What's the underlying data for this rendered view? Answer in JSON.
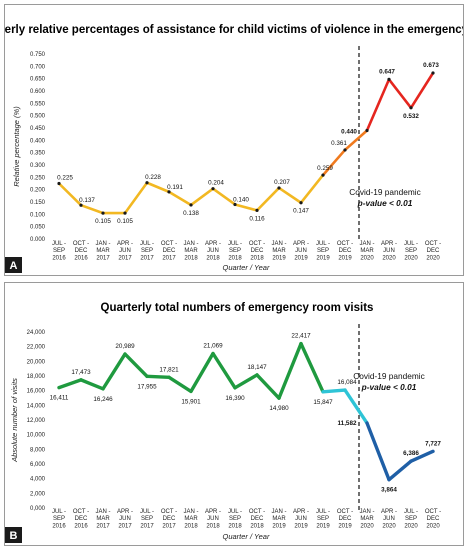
{
  "chart_data": [
    {
      "type": "line",
      "panel_label": "A",
      "title": "Quarterly relative percentages of assistance for child victims of violence in the emergency room",
      "xlabel": "Quarter / Year",
      "ylabel": "Relative percentage (%)",
      "ylim": [
        0,
        0.75
      ],
      "yticks": [
        "0.000",
        "0.050",
        "0.100",
        "0.150",
        "0.200",
        "0.250",
        "0.300",
        "0.350",
        "0.400",
        "0.450",
        "0.500",
        "0.550",
        "0.600",
        "0.650",
        "0.700",
        "0.750"
      ],
      "categories": [
        [
          "JUL -",
          "SEP",
          "2016"
        ],
        [
          "OCT -",
          "DEC",
          "2016"
        ],
        [
          "JAN -",
          "MAR",
          "2017"
        ],
        [
          "APR -",
          "JUN",
          "2017"
        ],
        [
          "JUL -",
          "SEP",
          "2017"
        ],
        [
          "OCT -",
          "DEC",
          "2017"
        ],
        [
          "JAN -",
          "MAR",
          "2018"
        ],
        [
          "APR -",
          "JUN",
          "2018"
        ],
        [
          "JUL -",
          "SEP",
          "2018"
        ],
        [
          "OCT -",
          "DEC",
          "2018"
        ],
        [
          "JAN -",
          "MAR",
          "2019"
        ],
        [
          "APR -",
          "JUN",
          "2019"
        ],
        [
          "JUL -",
          "SEP",
          "2019"
        ],
        [
          "OCT -",
          "DEC",
          "2019"
        ],
        [
          "JAN -",
          "MAR",
          "2020"
        ],
        [
          "APR -",
          "JUN",
          "2020"
        ],
        [
          "JUL -",
          "SEP",
          "2020"
        ],
        [
          "OCT -",
          "DEC",
          "2020"
        ]
      ],
      "values": [
        0.225,
        0.137,
        0.105,
        0.105,
        0.228,
        0.191,
        0.138,
        0.204,
        0.14,
        0.116,
        0.207,
        0.147,
        0.259,
        0.361,
        0.44,
        0.647,
        0.532,
        0.673
      ],
      "value_labels": [
        "0.225",
        "0.137",
        "0.105",
        "0.105",
        "0.228",
        "0.191",
        "0.138",
        "0.204",
        "0.140",
        "0.116",
        "0.207",
        "0.147",
        "0.259",
        "0.361",
        "0.440",
        "0.647",
        "0.532",
        "0.673"
      ],
      "colors": {
        "pre": "#f2b822",
        "mid": "#f07a1e",
        "post": "#e5261f",
        "marker": "#1a1a1a"
      },
      "annotation": {
        "line1": "Covid-19 pandemic",
        "line2": "p-value < 0.01"
      },
      "grid": false
    },
    {
      "type": "line",
      "panel_label": "B",
      "title": "Quarterly total numbers of emergency room visits",
      "xlabel": "Quarter / Year",
      "ylabel": "Absolute number of visits",
      "ylim": [
        0,
        24000
      ],
      "yticks": [
        "0,000",
        "2,000",
        "4,000",
        "6,000",
        "8,000",
        "10,000",
        "12,000",
        "14,000",
        "16,000",
        "18,000",
        "20,000",
        "22,000",
        "24,000"
      ],
      "categories": [
        [
          "JUL -",
          "SEP",
          "2016"
        ],
        [
          "OCT -",
          "DEC",
          "2016"
        ],
        [
          "JAN -",
          "MAR",
          "2017"
        ],
        [
          "APR -",
          "JUN",
          "2017"
        ],
        [
          "JUL -",
          "SEP",
          "2017"
        ],
        [
          "OCT -",
          "DEC",
          "2017"
        ],
        [
          "JAN -",
          "MAR",
          "2018"
        ],
        [
          "APR -",
          "JUN",
          "2018"
        ],
        [
          "JUL -",
          "SEP",
          "2018"
        ],
        [
          "OCT -",
          "DEC",
          "2018"
        ],
        [
          "JAN -",
          "MAR",
          "2019"
        ],
        [
          "APR -",
          "JUN",
          "2019"
        ],
        [
          "JUL -",
          "SEP",
          "2019"
        ],
        [
          "OCT -",
          "DEC",
          "2019"
        ],
        [
          "JAN -",
          "MAR",
          "2020"
        ],
        [
          "APR -",
          "JUN",
          "2020"
        ],
        [
          "JUL -",
          "SEP",
          "2020"
        ],
        [
          "OCT -",
          "DEC",
          "2020"
        ]
      ],
      "values": [
        16411,
        17473,
        16246,
        20989,
        17955,
        17821,
        15901,
        21069,
        16390,
        18147,
        14980,
        22417,
        15847,
        16084,
        11582,
        3864,
        6386,
        7727
      ],
      "value_labels": [
        "16,411",
        "17,473",
        "16,246",
        "20,989",
        "17,955",
        "17,821",
        "15,901",
        "21,069",
        "16,390",
        "18,147",
        "14,980",
        "22,417",
        "15,847",
        "16,084",
        "11,582",
        "3,864",
        "6,386",
        "7,727"
      ],
      "colors": {
        "pre": "#1f9a3f",
        "mid": "#2ec4d6",
        "post": "#1f5fa6"
      },
      "annotation": {
        "line1": "Covid-19 pandemic",
        "line2": "p-value < 0.01"
      },
      "grid": false
    }
  ]
}
